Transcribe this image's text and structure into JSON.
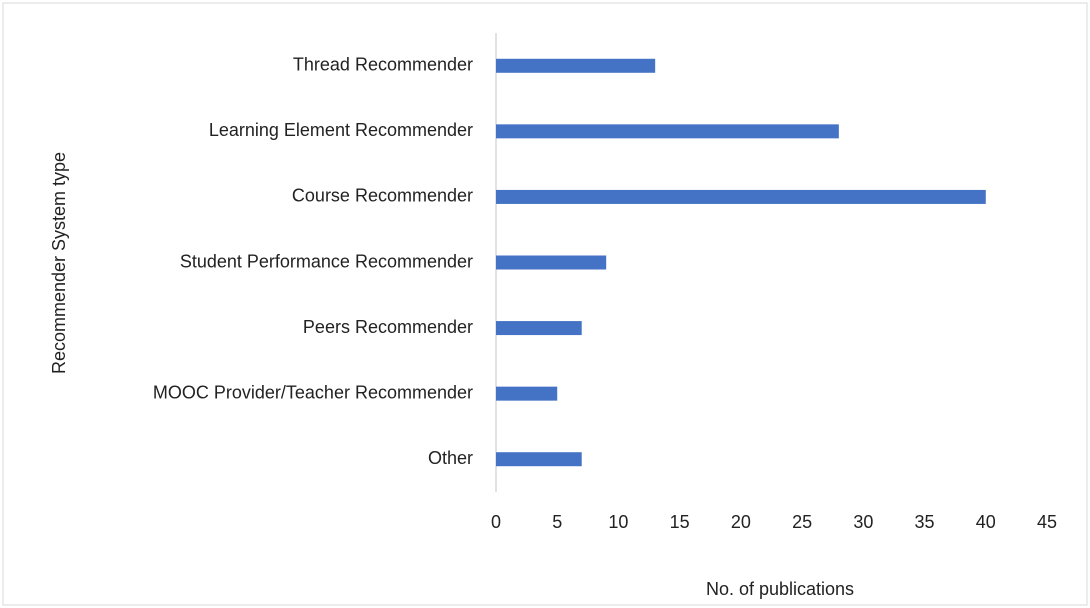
{
  "chart_data": {
    "type": "bar",
    "orientation": "horizontal",
    "xlabel": "No. of publications",
    "ylabel": "Recommender System type",
    "categories": [
      "Thread Recommender",
      "Learning Element Recommender",
      "Course Recommender",
      "Student Performance Recommender",
      "Peers Recommender",
      "MOOC Provider/Teacher Recommender",
      "Other"
    ],
    "values": [
      13,
      28,
      40,
      9,
      7,
      5,
      7
    ],
    "color": "#4472c4",
    "xlim": [
      0,
      45
    ],
    "xticks": [
      0,
      5,
      10,
      15,
      20,
      25,
      30,
      35,
      40,
      45
    ],
    "grid": false
  }
}
